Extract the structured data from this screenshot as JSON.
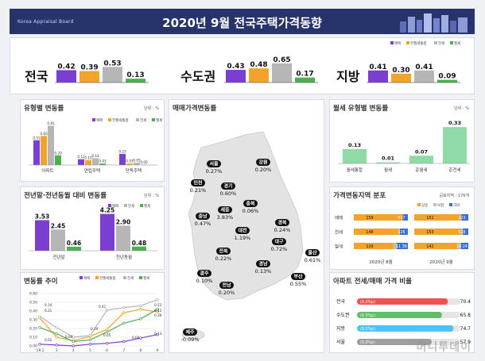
{
  "header": {
    "brand": "Korea Appraisal Board",
    "title": "2020년 9월  전국주택가격동향"
  },
  "legend_labels": [
    "매매",
    "전월세통합",
    "전세",
    "월세"
  ],
  "colors": {
    "매매": "#7a3fd1",
    "전월세통합": "#f2a42a",
    "전세": "#b6b6b6",
    "월세": "#4caf50",
    "월세유형": "#8fdaa6",
    "전세bar": "#3b6fd3"
  },
  "summary": {
    "regions": [
      {
        "name": "전국",
        "values": [
          0.42,
          0.39,
          0.53,
          0.13
        ]
      },
      {
        "name": "수도권",
        "values": [
          0.43,
          0.48,
          0.65,
          0.17
        ]
      },
      {
        "name": "지방",
        "values": [
          0.41,
          0.3,
          0.41,
          0.09
        ]
      }
    ]
  },
  "panels": {
    "type_change": {
      "title": "유형별 변동률",
      "unit": "단위 : %"
    },
    "year_compare": {
      "title": "전년말·전년동월 대비 변동률",
      "unit": "단위 : %"
    },
    "trend": {
      "title": "변동률 추이"
    },
    "map": {
      "title": "매매가격변동률"
    },
    "monthly_rent": {
      "title": "월세 유형별 변동률",
      "unit": "단위 : %"
    },
    "distribution": {
      "title": "가격변동지역 분포",
      "unit": "공표지역 : 176개"
    },
    "ratio": {
      "title": "아파트 전세/매매 가격 비율"
    }
  },
  "chart_data": [
    {
      "type": "bar",
      "title": "유형별 변동률",
      "categories": [
        "아파트",
        "연립주택",
        "단독주택"
      ],
      "series": [
        {
          "name": "매매",
          "values": [
            0.51,
            0.12,
            0.23
          ]
        },
        {
          "name": "전월세통합",
          "values": [
            0.6,
            0.1,
            0.03
          ]
        },
        {
          "name": "전세",
          "values": [
            0.81,
            0.14,
            0.05
          ]
        },
        {
          "name": "월세",
          "values": [
            0.2,
            0.03,
            0.0
          ]
        }
      ],
      "labels": [
        [
          "0.51",
          "0.60",
          "0.81",
          "0.20"
        ],
        [
          "0.12",
          "0.10",
          "0.14",
          "0.03"
        ],
        [
          "0.23",
          "0.03",
          "0.05",
          "0.00"
        ]
      ]
    },
    {
      "type": "bar",
      "title": "전년말·전년동월 대비 변동률",
      "categories": [
        "전년말",
        "전년동월"
      ],
      "series": [
        {
          "name": "매매",
          "values": [
            3.53,
            4.25
          ]
        },
        {
          "name": "전세",
          "values": [
            2.45,
            2.9
          ]
        },
        {
          "name": "월세",
          "values": [
            0.46,
            0.48
          ]
        }
      ],
      "legend": [
        "매매",
        "전세",
        "월세"
      ]
    },
    {
      "type": "line",
      "title": "변동률 추이",
      "x": [
        "'19.2",
        "3",
        "4",
        "5",
        "6",
        "7",
        "8",
        "9"
      ],
      "ylim": [
        0.0,
        0.6
      ],
      "yticks": [
        "0.00",
        "0.10",
        "0.20",
        "0.30",
        "0.40",
        "0.50",
        "0.60"
      ],
      "series": [
        {
          "name": "매매",
          "values": [
            0.02,
            0.01,
            0.0,
            0.02,
            0.03,
            0.05,
            0.09,
            0.13
          ]
        },
        {
          "name": "전월세통합",
          "values": [
            0.32,
            0.1,
            0.06,
            0.11,
            0.19,
            0.38,
            0.42,
            0.39
          ]
        },
        {
          "name": "전세",
          "values": [
            0.34,
            0.21,
            0.1,
            0.12,
            0.41,
            0.44,
            0.46,
            0.53
          ]
        },
        {
          "name": "월세",
          "values": [
            0.21,
            0.14,
            0.05,
            0.07,
            0.16,
            0.26,
            0.31,
            0.42
          ]
        }
      ],
      "point_labels": [
        "0.34",
        "0.21",
        "0.41",
        "0.53",
        "0.42",
        "0.39",
        "0.13",
        "0.19",
        "0.04",
        "0.05",
        "0.02",
        "0.04"
      ]
    },
    {
      "type": "bar",
      "title": "월세 유형별 변동률",
      "categories": [
        "월세통합",
        "월세",
        "준월세",
        "준전세"
      ],
      "values": [
        0.13,
        0.01,
        0.07,
        0.33
      ]
    },
    {
      "type": "bar",
      "title": "가격변동지역 분포",
      "legend": [
        "상승",
        "보합",
        "하락"
      ],
      "rows": [
        {
          "name": "매매",
          "aug": [
            159,
            0,
            17
          ],
          "sep": [
            151,
            2,
            23
          ],
          "aug_labels": [
            "159",
            "017"
          ],
          "sep_labels": [
            "151",
            "223"
          ]
        },
        {
          "name": "전세",
          "aug": [
            148,
            2,
            26
          ],
          "sep": [
            153,
            5,
            18
          ],
          "aug_labels": [
            "148",
            "226"
          ],
          "sep_labels": [
            "153",
            "518"
          ]
        },
        {
          "name": "월세",
          "aug": [
            129,
            11,
            36
          ],
          "sep": [
            142,
            10,
            24
          ],
          "aug_labels": [
            "129",
            "11 36"
          ],
          "sep_labels": [
            "142",
            "10 24"
          ]
        }
      ],
      "columns": [
        "2020년 8월",
        "2020년 9월"
      ]
    },
    {
      "type": "bar",
      "title": "아파트 전세/매매 가격 비율",
      "categories": [
        "전국",
        "수도권",
        "지방",
        "서울"
      ],
      "values": [
        70.4,
        65.8,
        74.7,
        57.9
      ],
      "changes": [
        "(0.2%p)",
        "(0.3%p)",
        "(0.1%p)",
        "(0.3%p)"
      ],
      "value_labels": [
        "70.4",
        "65.8",
        "74.7",
        "57.9"
      ]
    }
  ],
  "map_regions": [
    {
      "name": "서울",
      "value": "0.27%"
    },
    {
      "name": "강원",
      "value": "0.20%"
    },
    {
      "name": "인천",
      "value": "0.21%"
    },
    {
      "name": "경기",
      "value": "0.60%"
    },
    {
      "name": "세종",
      "value": "3.83%"
    },
    {
      "name": "충북",
      "value": "0.06%"
    },
    {
      "name": "충남",
      "value": "0.47%"
    },
    {
      "name": "경북",
      "value": "0.24%"
    },
    {
      "name": "대전",
      "value": "1.19%"
    },
    {
      "name": "대구",
      "value": "0.72%"
    },
    {
      "name": "전북",
      "value": "0.22%"
    },
    {
      "name": "울산",
      "value": "0.61%"
    },
    {
      "name": "경남",
      "value": "0.13%"
    },
    {
      "name": "광주",
      "value": "0.10%"
    },
    {
      "name": "부산",
      "value": "0.55%"
    },
    {
      "name": "전남",
      "value": "0.20%"
    },
    {
      "name": "제주",
      "value": "-0.09%"
    }
  ],
  "watermark": "머니투데이"
}
